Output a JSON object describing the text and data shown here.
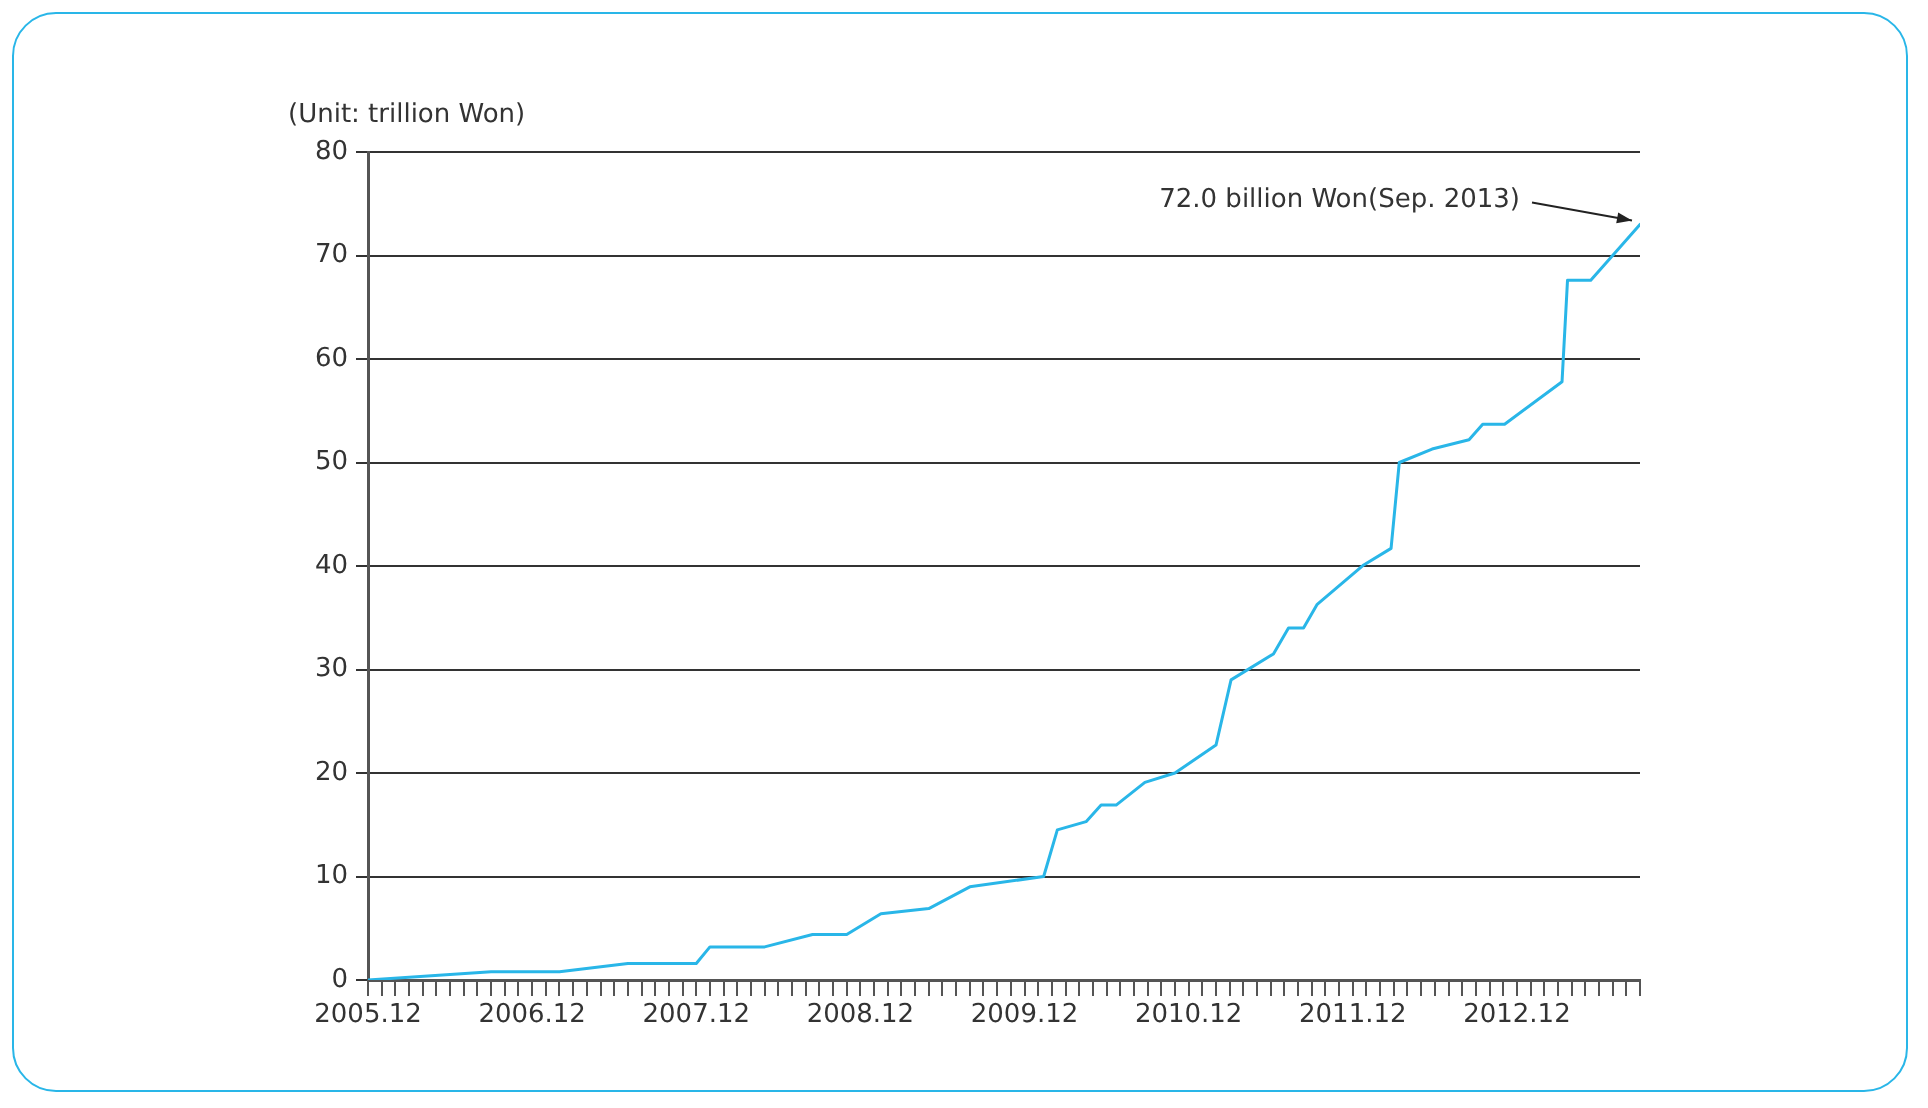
{
  "chart_data": {
    "type": "line",
    "ylabel": "(Unit: trillion Won)",
    "annotations": [
      {
        "text": "72.0 billion Won(Sep. 2013)",
        "x": "2013-09-01",
        "y": 73
      }
    ],
    "x": [
      "2005-12-01",
      "2006-09-01",
      "2007-02-01",
      "2007-07-01",
      "2007-12-01",
      "2008-01-01",
      "2008-05-01",
      "2008-08-16",
      "2008-11-01",
      "2009-01-16",
      "2009-05-01",
      "2009-08-01",
      "2010-01-13",
      "2010-02-13",
      "2010-04-16",
      "2010-05-19",
      "2010-06-22",
      "2010-08-25",
      "2010-11-01",
      "2011-02-01",
      "2011-03-04",
      "2011-06-07",
      "2011-07-10",
      "2011-08-13",
      "2011-09-13",
      "2011-12-25",
      "2012-02-25",
      "2012-03-13",
      "2012-05-25",
      "2012-08-16",
      "2012-09-16",
      "2012-11-04",
      "2013-03-10",
      "2013-03-22",
      "2013-05-13",
      "2013-09-01"
    ],
    "series": [
      {
        "color": "#29b6e8",
        "values": [
          0,
          0.8,
          0.8,
          1.6,
          1.6,
          3.2,
          3.2,
          4.4,
          4.4,
          6.4,
          6.9,
          9,
          10,
          14.5,
          15.3,
          16.9,
          16.9,
          19.1,
          20,
          22.7,
          29,
          31.5,
          34,
          34,
          36.3,
          40.1,
          41.7,
          50,
          51.3,
          52.2,
          53.7,
          53.7,
          57.8,
          67.6,
          67.6,
          73
        ]
      }
    ],
    "xlim": [
      "2005-12-01",
      "2013-09-01"
    ],
    "xticks": [
      {
        "value": "2005-12-01",
        "label": "2005.12"
      },
      {
        "value": "2006-01-01",
        "label": null
      },
      {
        "value": "2006-02-01",
        "label": null
      },
      {
        "value": "2006-03-01",
        "label": null
      },
      {
        "value": "2006-04-01",
        "label": null
      },
      {
        "value": "2006-05-01",
        "label": null
      },
      {
        "value": "2006-06-01",
        "label": null
      },
      {
        "value": "2006-07-01",
        "label": null
      },
      {
        "value": "2006-08-01",
        "label": null
      },
      {
        "value": "2006-09-01",
        "label": null
      },
      {
        "value": "2006-10-01",
        "label": null
      },
      {
        "value": "2006-11-01",
        "label": null
      },
      {
        "value": "2006-12-01",
        "label": "2006.12"
      },
      {
        "value": "2007-01-01",
        "label": null
      },
      {
        "value": "2007-02-01",
        "label": null
      },
      {
        "value": "2007-03-01",
        "label": null
      },
      {
        "value": "2007-04-01",
        "label": null
      },
      {
        "value": "2007-05-01",
        "label": null
      },
      {
        "value": "2007-06-01",
        "label": null
      },
      {
        "value": "2007-07-01",
        "label": null
      },
      {
        "value": "2007-08-01",
        "label": null
      },
      {
        "value": "2007-09-01",
        "label": null
      },
      {
        "value": "2007-10-01",
        "label": null
      },
      {
        "value": "2007-11-01",
        "label": null
      },
      {
        "value": "2007-12-01",
        "label": "2007.12"
      },
      {
        "value": "2008-01-01",
        "label": null
      },
      {
        "value": "2008-02-01",
        "label": null
      },
      {
        "value": "2008-03-01",
        "label": null
      },
      {
        "value": "2008-04-01",
        "label": null
      },
      {
        "value": "2008-05-01",
        "label": null
      },
      {
        "value": "2008-06-01",
        "label": null
      },
      {
        "value": "2008-07-01",
        "label": null
      },
      {
        "value": "2008-08-01",
        "label": null
      },
      {
        "value": "2008-09-01",
        "label": null
      },
      {
        "value": "2008-10-01",
        "label": null
      },
      {
        "value": "2008-11-01",
        "label": null
      },
      {
        "value": "2008-12-01",
        "label": "2008.12"
      },
      {
        "value": "2009-01-01",
        "label": null
      },
      {
        "value": "2009-02-01",
        "label": null
      },
      {
        "value": "2009-03-01",
        "label": null
      },
      {
        "value": "2009-04-01",
        "label": null
      },
      {
        "value": "2009-05-01",
        "label": null
      },
      {
        "value": "2009-06-01",
        "label": null
      },
      {
        "value": "2009-07-01",
        "label": null
      },
      {
        "value": "2009-08-01",
        "label": null
      },
      {
        "value": "2009-09-01",
        "label": null
      },
      {
        "value": "2009-10-01",
        "label": null
      },
      {
        "value": "2009-11-01",
        "label": null
      },
      {
        "value": "2009-12-01",
        "label": "2009.12"
      },
      {
        "value": "2010-01-01",
        "label": null
      },
      {
        "value": "2010-02-01",
        "label": null
      },
      {
        "value": "2010-03-01",
        "label": null
      },
      {
        "value": "2010-04-01",
        "label": null
      },
      {
        "value": "2010-05-01",
        "label": null
      },
      {
        "value": "2010-06-01",
        "label": null
      },
      {
        "value": "2010-07-01",
        "label": null
      },
      {
        "value": "2010-08-01",
        "label": null
      },
      {
        "value": "2010-09-01",
        "label": null
      },
      {
        "value": "2010-10-01",
        "label": null
      },
      {
        "value": "2010-11-01",
        "label": null
      },
      {
        "value": "2010-12-01",
        "label": "2010.12"
      },
      {
        "value": "2011-01-01",
        "label": null
      },
      {
        "value": "2011-02-01",
        "label": null
      },
      {
        "value": "2011-03-01",
        "label": null
      },
      {
        "value": "2011-04-01",
        "label": null
      },
      {
        "value": "2011-05-01",
        "label": null
      },
      {
        "value": "2011-06-01",
        "label": null
      },
      {
        "value": "2011-07-01",
        "label": null
      },
      {
        "value": "2011-08-01",
        "label": null
      },
      {
        "value": "2011-09-01",
        "label": null
      },
      {
        "value": "2011-10-01",
        "label": null
      },
      {
        "value": "2011-11-01",
        "label": null
      },
      {
        "value": "2011-12-01",
        "label": "2011.12"
      },
      {
        "value": "2012-01-01",
        "label": null
      },
      {
        "value": "2012-02-01",
        "label": null
      },
      {
        "value": "2012-03-01",
        "label": null
      },
      {
        "value": "2012-04-01",
        "label": null
      },
      {
        "value": "2012-05-01",
        "label": null
      },
      {
        "value": "2012-06-01",
        "label": null
      },
      {
        "value": "2012-07-01",
        "label": null
      },
      {
        "value": "2012-08-01",
        "label": null
      },
      {
        "value": "2012-09-01",
        "label": null
      },
      {
        "value": "2012-10-01",
        "label": null
      },
      {
        "value": "2012-11-01",
        "label": null
      },
      {
        "value": "2012-12-01",
        "label": "2012.12"
      },
      {
        "value": "2013-01-01",
        "label": null
      },
      {
        "value": "2013-02-01",
        "label": null
      },
      {
        "value": "2013-03-01",
        "label": null
      },
      {
        "value": "2013-04-01",
        "label": null
      },
      {
        "value": "2013-05-01",
        "label": null
      },
      {
        "value": "2013-06-01",
        "label": null
      },
      {
        "value": "2013-07-01",
        "label": null
      },
      {
        "value": "2013-08-01",
        "label": null
      },
      {
        "value": "2013-09-01",
        "label": null
      }
    ],
    "ylim": [
      0,
      80
    ],
    "yticks": [
      0,
      10,
      20,
      30,
      40,
      50,
      60,
      70,
      80
    ],
    "grid": "y",
    "legend": false,
    "marker": "none",
    "line_style": "solid"
  }
}
